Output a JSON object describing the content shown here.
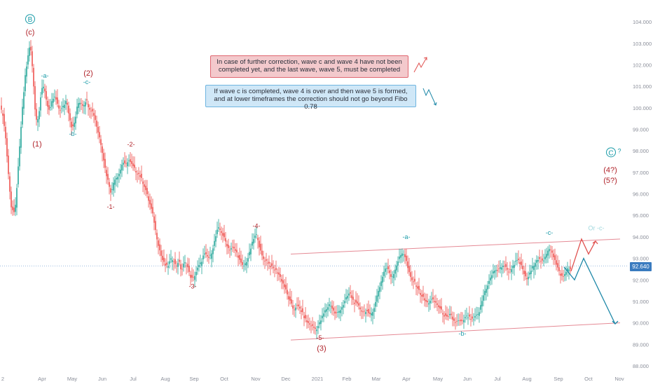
{
  "chart_data": {
    "type": "candlestick",
    "y_ticks": [
      "104.000",
      "103.000",
      "102.000",
      "101.000",
      "100.000",
      "99.000",
      "98.000",
      "97.000",
      "96.000",
      "95.000",
      "94.000",
      "93.000",
      "92.000",
      "91.000",
      "90.000",
      "89.000",
      "88.000"
    ],
    "x_ticks": [
      "2",
      "Apr",
      "May",
      "Jun",
      "Jul",
      "Aug",
      "Sep",
      "Oct",
      "Nov",
      "Dec",
      "2021",
      "Feb",
      "Mar",
      "Apr",
      "May",
      "Jun",
      "Jul",
      "Aug",
      "Sep",
      "Oct",
      "Nov"
    ],
    "ylim": [
      87.9,
      104.3
    ],
    "last_price": "92.640",
    "price_path": [
      [
        0,
        100.0
      ],
      [
        4,
        99.7
      ],
      [
        8,
        98.6
      ],
      [
        12,
        96.9
      ],
      [
        16,
        95.4
      ],
      [
        21,
        95.0
      ],
      [
        26,
        97.2
      ],
      [
        31,
        99.6
      ],
      [
        36,
        101.5
      ],
      [
        40,
        102.4
      ],
      [
        43,
        103.0
      ],
      [
        47,
        101.6
      ],
      [
        51,
        99.4
      ],
      [
        55,
        99.6
      ],
      [
        59,
        100.8
      ],
      [
        63,
        101.0
      ],
      [
        67,
        100.2
      ],
      [
        71,
        99.8
      ],
      [
        75,
        100.4
      ],
      [
        79,
        100.5
      ],
      [
        83,
        100.0
      ],
      [
        87,
        99.9
      ],
      [
        91,
        100.1
      ],
      [
        95,
        100.4
      ],
      [
        99,
        99.6
      ],
      [
        103,
        99.0
      ],
      [
        107,
        99.4
      ],
      [
        111,
        100.2
      ],
      [
        115,
        100.3
      ],
      [
        119,
        100.1
      ],
      [
        123,
        100.4
      ],
      [
        127,
        100.0
      ],
      [
        131,
        99.9
      ],
      [
        135,
        99.6
      ],
      [
        139,
        99.0
      ],
      [
        143,
        98.5
      ],
      [
        147,
        97.8
      ],
      [
        151,
        97.0
      ],
      [
        155,
        96.5
      ],
      [
        159,
        96.0
      ],
      [
        163,
        96.7
      ],
      [
        167,
        96.8
      ],
      [
        171,
        97.0
      ],
      [
        175,
        97.5
      ],
      [
        179,
        97.3
      ],
      [
        183,
        97.6
      ],
      [
        187,
        97.4
      ],
      [
        191,
        97.2
      ],
      [
        195,
        97.0
      ],
      [
        199,
        96.9
      ],
      [
        203,
        96.6
      ],
      [
        207,
        96.3
      ],
      [
        211,
        95.8
      ],
      [
        215,
        95.4
      ],
      [
        219,
        94.9
      ],
      [
        223,
        94.1
      ],
      [
        227,
        93.5
      ],
      [
        231,
        93.0
      ],
      [
        235,
        92.7
      ],
      [
        239,
        92.6
      ],
      [
        243,
        92.9
      ],
      [
        247,
        93.0
      ],
      [
        251,
        92.6
      ],
      [
        255,
        92.9
      ],
      [
        259,
        92.4
      ],
      [
        263,
        92.8
      ],
      [
        267,
        92.7
      ],
      [
        271,
        92.2
      ],
      [
        275,
        92.0
      ],
      [
        279,
        92.3
      ],
      [
        283,
        92.6
      ],
      [
        287,
        92.8
      ],
      [
        291,
        93.2
      ],
      [
        295,
        93.1
      ],
      [
        299,
        93.0
      ],
      [
        303,
        93.4
      ],
      [
        307,
        93.9
      ],
      [
        311,
        94.4
      ],
      [
        315,
        94.3
      ],
      [
        319,
        94.0
      ],
      [
        323,
        93.7
      ],
      [
        327,
        93.4
      ],
      [
        331,
        93.5
      ],
      [
        335,
        93.4
      ],
      [
        339,
        93.2
      ],
      [
        343,
        92.8
      ],
      [
        347,
        92.6
      ],
      [
        351,
        92.8
      ],
      [
        355,
        93.1
      ],
      [
        359,
        93.6
      ],
      [
        363,
        94.0
      ],
      [
        367,
        94.1
      ],
      [
        371,
        93.4
      ],
      [
        375,
        93.0
      ],
      [
        379,
        92.9
      ],
      [
        383,
        92.8
      ],
      [
        387,
        92.6
      ],
      [
        391,
        92.5
      ],
      [
        395,
        92.4
      ],
      [
        399,
        92.2
      ],
      [
        403,
        91.9
      ],
      [
        407,
        91.6
      ],
      [
        411,
        91.2
      ],
      [
        415,
        90.9
      ],
      [
        419,
        90.6
      ],
      [
        423,
        90.8
      ],
      [
        427,
        90.7
      ],
      [
        431,
        90.5
      ],
      [
        435,
        90.2
      ],
      [
        439,
        90.0
      ],
      [
        443,
        89.9
      ],
      [
        447,
        89.8
      ],
      [
        451,
        89.7
      ],
      [
        455,
        89.9
      ],
      [
        459,
        90.2
      ],
      [
        463,
        90.5
      ],
      [
        467,
        90.7
      ],
      [
        471,
        90.9
      ],
      [
        475,
        90.6
      ],
      [
        479,
        90.4
      ],
      [
        483,
        90.5
      ],
      [
        487,
        90.7
      ],
      [
        491,
        90.9
      ],
      [
        495,
        91.2
      ],
      [
        499,
        91.4
      ],
      [
        503,
        91.1
      ],
      [
        507,
        90.9
      ],
      [
        511,
        90.8
      ],
      [
        515,
        90.6
      ],
      [
        519,
        90.5
      ],
      [
        523,
        90.6
      ],
      [
        527,
        90.3
      ],
      [
        531,
        90.5
      ],
      [
        535,
        90.8
      ],
      [
        539,
        91.4
      ],
      [
        543,
        91.8
      ],
      [
        547,
        92.3
      ],
      [
        551,
        92.6
      ],
      [
        555,
        92.4
      ],
      [
        559,
        92.1
      ],
      [
        563,
        92.4
      ],
      [
        567,
        92.8
      ],
      [
        571,
        93.1
      ],
      [
        575,
        93.3
      ],
      [
        579,
        93.0
      ],
      [
        583,
        92.4
      ],
      [
        587,
        92.0
      ],
      [
        591,
        91.9
      ],
      [
        595,
        91.7
      ],
      [
        599,
        91.4
      ],
      [
        603,
        91.2
      ],
      [
        607,
        91.0
      ],
      [
        611,
        90.9
      ],
      [
        615,
        91.1
      ],
      [
        619,
        91.0
      ],
      [
        623,
        90.9
      ],
      [
        627,
        90.7
      ],
      [
        631,
        90.5
      ],
      [
        635,
        90.3
      ],
      [
        639,
        90.2
      ],
      [
        643,
        90.4
      ],
      [
        647,
        90.1
      ],
      [
        651,
        90.0
      ],
      [
        655,
        90.1
      ],
      [
        659,
        90.0
      ],
      [
        663,
        90.2
      ],
      [
        667,
        90.3
      ],
      [
        671,
        90.2
      ],
      [
        675,
        90.1
      ],
      [
        679,
        90.3
      ],
      [
        683,
        90.4
      ],
      [
        687,
        90.9
      ],
      [
        691,
        91.4
      ],
      [
        695,
        91.7
      ],
      [
        699,
        92.0
      ],
      [
        703,
        92.3
      ],
      [
        707,
        92.5
      ],
      [
        711,
        92.4
      ],
      [
        715,
        92.6
      ],
      [
        719,
        92.7
      ],
      [
        723,
        92.5
      ],
      [
        727,
        92.4
      ],
      [
        731,
        92.6
      ],
      [
        735,
        92.8
      ],
      [
        739,
        92.9
      ],
      [
        743,
        92.7
      ],
      [
        747,
        92.4
      ],
      [
        751,
        92.0
      ],
      [
        755,
        92.2
      ],
      [
        759,
        92.5
      ],
      [
        763,
        92.8
      ],
      [
        767,
        93.0
      ],
      [
        771,
        92.9
      ],
      [
        775,
        92.8
      ],
      [
        779,
        93.1
      ],
      [
        783,
        93.5
      ],
      [
        787,
        93.4
      ],
      [
        791,
        93.0
      ],
      [
        795,
        92.6
      ],
      [
        799,
        92.3
      ],
      [
        803,
        92.1
      ],
      [
        807,
        92.3
      ],
      [
        811,
        92.6
      ],
      [
        815,
        92.4
      ]
    ],
    "channel": {
      "upper": [
        [
          415,
          93.2
        ],
        [
          885,
          93.9
        ]
      ],
      "lower": [
        [
          415,
          89.2
        ],
        [
          885,
          90.0
        ]
      ]
    },
    "scenario_red": [
      [
        815,
        92.4
      ],
      [
        830,
        93.9
      ],
      [
        840,
        93.2
      ],
      [
        850,
        93.8
      ]
    ],
    "scenario_blue": [
      [
        805,
        92.6
      ],
      [
        820,
        92.0
      ],
      [
        833,
        93.0
      ],
      [
        878,
        89.95
      ]
    ],
    "wave_labels": [
      {
        "text": "B",
        "x": 43,
        "y": 104.0,
        "color": "#1a9ba8",
        "circled": true
      },
      {
        "text": "(c)",
        "x": 43,
        "y": 103.4,
        "color": "#b0232a"
      },
      {
        "text": "-a-",
        "x": 64,
        "y": 101.4,
        "color": "#1a9ba8"
      },
      {
        "text": "(2)",
        "x": 126,
        "y": 101.5,
        "color": "#b0232a"
      },
      {
        "text": "-c-",
        "x": 124,
        "y": 101.1,
        "color": "#1a9ba8"
      },
      {
        "text": "-b-",
        "x": 104,
        "y": 98.7,
        "color": "#1a9ba8"
      },
      {
        "text": "(1)",
        "x": 53,
        "y": 98.2,
        "color": "#b0232a"
      },
      {
        "text": "-2-",
        "x": 187,
        "y": 98.2,
        "color": "#b0232a"
      },
      {
        "text": "-1-",
        "x": 158,
        "y": 95.3,
        "color": "#b0232a"
      },
      {
        "text": "-3-",
        "x": 275,
        "y": 91.6,
        "color": "#b0232a"
      },
      {
        "text": "-4-",
        "x": 366,
        "y": 94.4,
        "color": "#b0232a"
      },
      {
        "text": "-5-",
        "x": 457,
        "y": 89.2,
        "color": "#b0232a"
      },
      {
        "text": "(3)",
        "x": 459,
        "y": 88.7,
        "color": "#b0232a"
      },
      {
        "text": "-a-",
        "x": 580,
        "y": 93.9,
        "color": "#1a9ba8"
      },
      {
        "text": "-b-",
        "x": 660,
        "y": 89.4,
        "color": "#1a9ba8"
      },
      {
        "text": "-c-",
        "x": 784,
        "y": 94.1,
        "color": "#1a9ba8"
      },
      {
        "text": "C",
        "x": 872,
        "y": 97.8,
        "color": "#1a9ba8",
        "circled": true
      },
      {
        "text": "?",
        "x": 884,
        "y": 97.9,
        "color": "#1a9ba8"
      },
      {
        "text": "(4?)",
        "x": 871,
        "y": 97.0,
        "color": "#b0232a"
      },
      {
        "text": "(5?)",
        "x": 871,
        "y": 96.5,
        "color": "#b0232a"
      },
      {
        "text": "Or -c-",
        "x": 851,
        "y": 94.3,
        "color": "#9fd7dd"
      }
    ]
  },
  "notes": {
    "red": "In case of further correction, wave c and wave 4 have not been completed yet, and the last wave, wave 5, must be completed",
    "blue": "If wave c is completed, wave 4 is over and then wave 5 is formed, and at lower timeframes the correction should not go beyond Fibo 0.78"
  },
  "colors": {
    "up": "#26a69a",
    "down": "#ef5350",
    "channel": "#e58a95",
    "scenario_red": "#e0514f",
    "scenario_blue": "#1e88a8",
    "axis_text": "#8a8e99"
  }
}
